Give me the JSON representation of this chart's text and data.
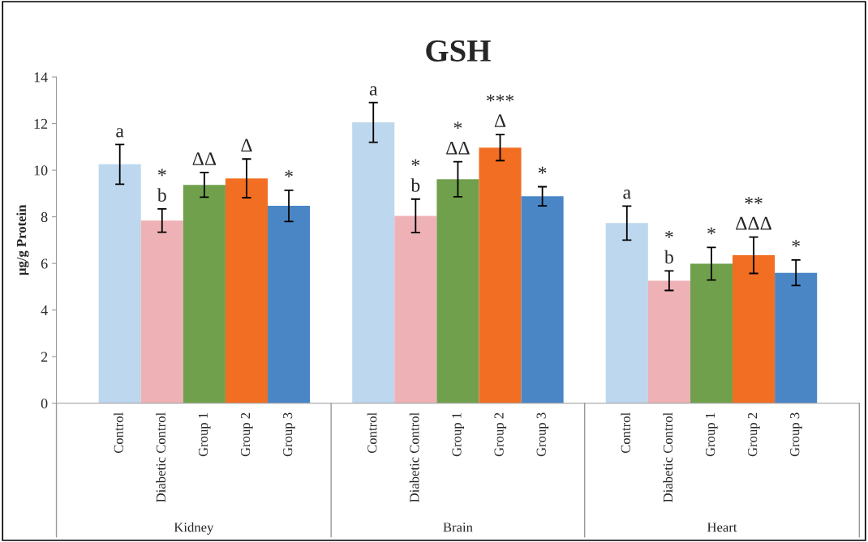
{
  "chart_data": {
    "type": "bar",
    "title": "GSH",
    "ylabel": "µg/g Protein",
    "categories": [
      "Control",
      "Diabetic Control",
      "Group 1",
      "Group 2",
      "Group 3",
      "Control",
      "Diabetic Control",
      "Group 1",
      "Group 2",
      "Group 3",
      "Control",
      "Diabetic Control",
      "Group 1",
      "Group 2",
      "Group 3"
    ],
    "values": [
      10.25,
      7.84,
      9.37,
      9.65,
      8.47,
      12.05,
      8.04,
      9.61,
      10.97,
      8.88,
      7.73,
      5.26,
      5.99,
      6.35,
      5.6
    ],
    "errors": [
      0.85,
      0.5,
      0.53,
      0.83,
      0.67,
      0.85,
      0.72,
      0.75,
      0.56,
      0.41,
      0.73,
      0.42,
      0.7,
      0.78,
      0.55
    ],
    "value_labels": [
      "a",
      "*\nb",
      "ΔΔ",
      "Δ",
      "*",
      "a",
      "*\nb",
      "*\nΔΔ",
      "***\nΔ",
      "*",
      "a",
      "*\nb",
      "*",
      "**\nΔΔΔ",
      "*"
    ],
    "colors": [
      "#bdd7ee",
      "#eeb1b6",
      "#70a04c",
      "#f26e22",
      "#4a86c6",
      "#bdd7ee",
      "#eeb1b6",
      "#70a04c",
      "#f26e22",
      "#4a86c6",
      "#bdd7ee",
      "#eeb1b6",
      "#70a04c",
      "#f26e22",
      "#4a86c6"
    ],
    "annotations": [
      "Kidney",
      "Brain",
      "Heart"
    ],
    "ylim": [
      0,
      14
    ],
    "yticks": [
      0,
      2,
      4,
      6,
      8,
      10,
      12,
      14
    ],
    "grid": false
  }
}
